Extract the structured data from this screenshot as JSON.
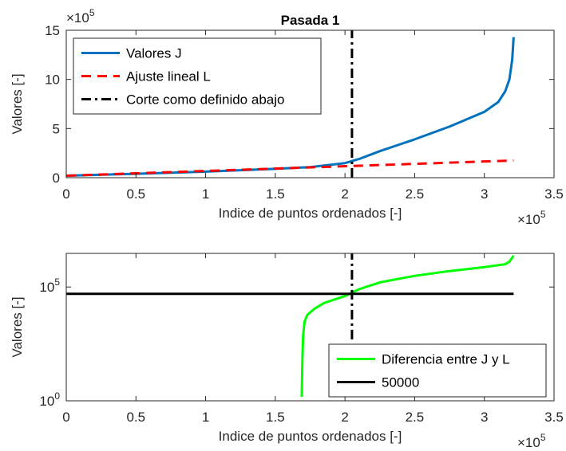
{
  "chart_data": [
    {
      "type": "line",
      "title": "Pasada 1",
      "xlabel": "Indice de puntos ordenados [-]",
      "ylabel": "Valores [-]",
      "xlim": [
        0,
        350000
      ],
      "ylim": [
        0,
        1500000
      ],
      "x_ticks": [
        "0",
        "0.5",
        "1",
        "1.5",
        "2",
        "2.5",
        "3",
        "3.5"
      ],
      "y_ticks": [
        "0",
        "5",
        "10",
        "15"
      ],
      "x_exponent": "×10",
      "x_exponent_power": "5",
      "y_exponent": "×10",
      "y_exponent_power": "5",
      "grid": false,
      "legend_position": "top-left",
      "series": [
        {
          "name": "Valores J",
          "color": "#0072BD",
          "style": "solid",
          "points": [
            [
              0,
              20000
            ],
            [
              50000,
              40000
            ],
            [
              100000,
              62000
            ],
            [
              150000,
              90000
            ],
            [
              175000,
              108000
            ],
            [
              200000,
              148000
            ],
            [
              210000,
              190000
            ],
            [
              225000,
              270000
            ],
            [
              250000,
              390000
            ],
            [
              275000,
              520000
            ],
            [
              300000,
              670000
            ],
            [
              310000,
              770000
            ],
            [
              315000,
              880000
            ],
            [
              318000,
              1000000
            ],
            [
              320000,
              1200000
            ],
            [
              321000,
              1430000
            ]
          ]
        },
        {
          "name": "Ajuste lineal L",
          "color": "#FF0000",
          "style": "dashed",
          "points": [
            [
              0,
              20000
            ],
            [
              321000,
              175000
            ]
          ]
        },
        {
          "name": "Corte como definido abajo",
          "color": "#000000",
          "style": "dashdot",
          "points": [
            [
              205000,
              0
            ],
            [
              205000,
              1500000
            ]
          ]
        }
      ]
    },
    {
      "type": "line",
      "title": "",
      "xlabel": "Indice de puntos ordenados [-]",
      "ylabel": "Valores [-]",
      "xlim": [
        0,
        350000
      ],
      "ylim": [
        1,
        3000000
      ],
      "yscale": "log",
      "x_ticks": [
        "0",
        "0.5",
        "1",
        "1.5",
        "2",
        "2.5",
        "3",
        "3.5"
      ],
      "y_ticks": [
        {
          "base": "10",
          "power": "0",
          "value": 1
        },
        {
          "base": "10",
          "power": "5",
          "value": 100000
        }
      ],
      "x_exponent": "×10",
      "x_exponent_power": "5",
      "grid": false,
      "legend_position": "bottom-right",
      "series": [
        {
          "name": "Diferencia entre J y L",
          "color": "#00FF00",
          "style": "solid",
          "points": [
            [
              169000,
              1.5
            ],
            [
              169200,
              10
            ],
            [
              169500,
              100
            ],
            [
              170000,
              800
            ],
            [
              171000,
              3000
            ],
            [
              173000,
              6000
            ],
            [
              178000,
              11000
            ],
            [
              185000,
              20000
            ],
            [
              200000,
              40000
            ],
            [
              210000,
              80000
            ],
            [
              225000,
              160000
            ],
            [
              250000,
              310000
            ],
            [
              275000,
              500000
            ],
            [
              300000,
              750000
            ],
            [
              315000,
              1000000
            ],
            [
              318000,
              1300000
            ],
            [
              321000,
              2400000
            ]
          ]
        },
        {
          "name": "50000",
          "color": "#000000",
          "style": "solid",
          "points": [
            [
              0,
              50000
            ],
            [
              321000,
              50000
            ]
          ]
        },
        {
          "name": "",
          "color": "#000000",
          "style": "dashdot",
          "points": [
            [
              205000,
              500
            ],
            [
              205000,
              3000000
            ]
          ]
        }
      ]
    }
  ]
}
